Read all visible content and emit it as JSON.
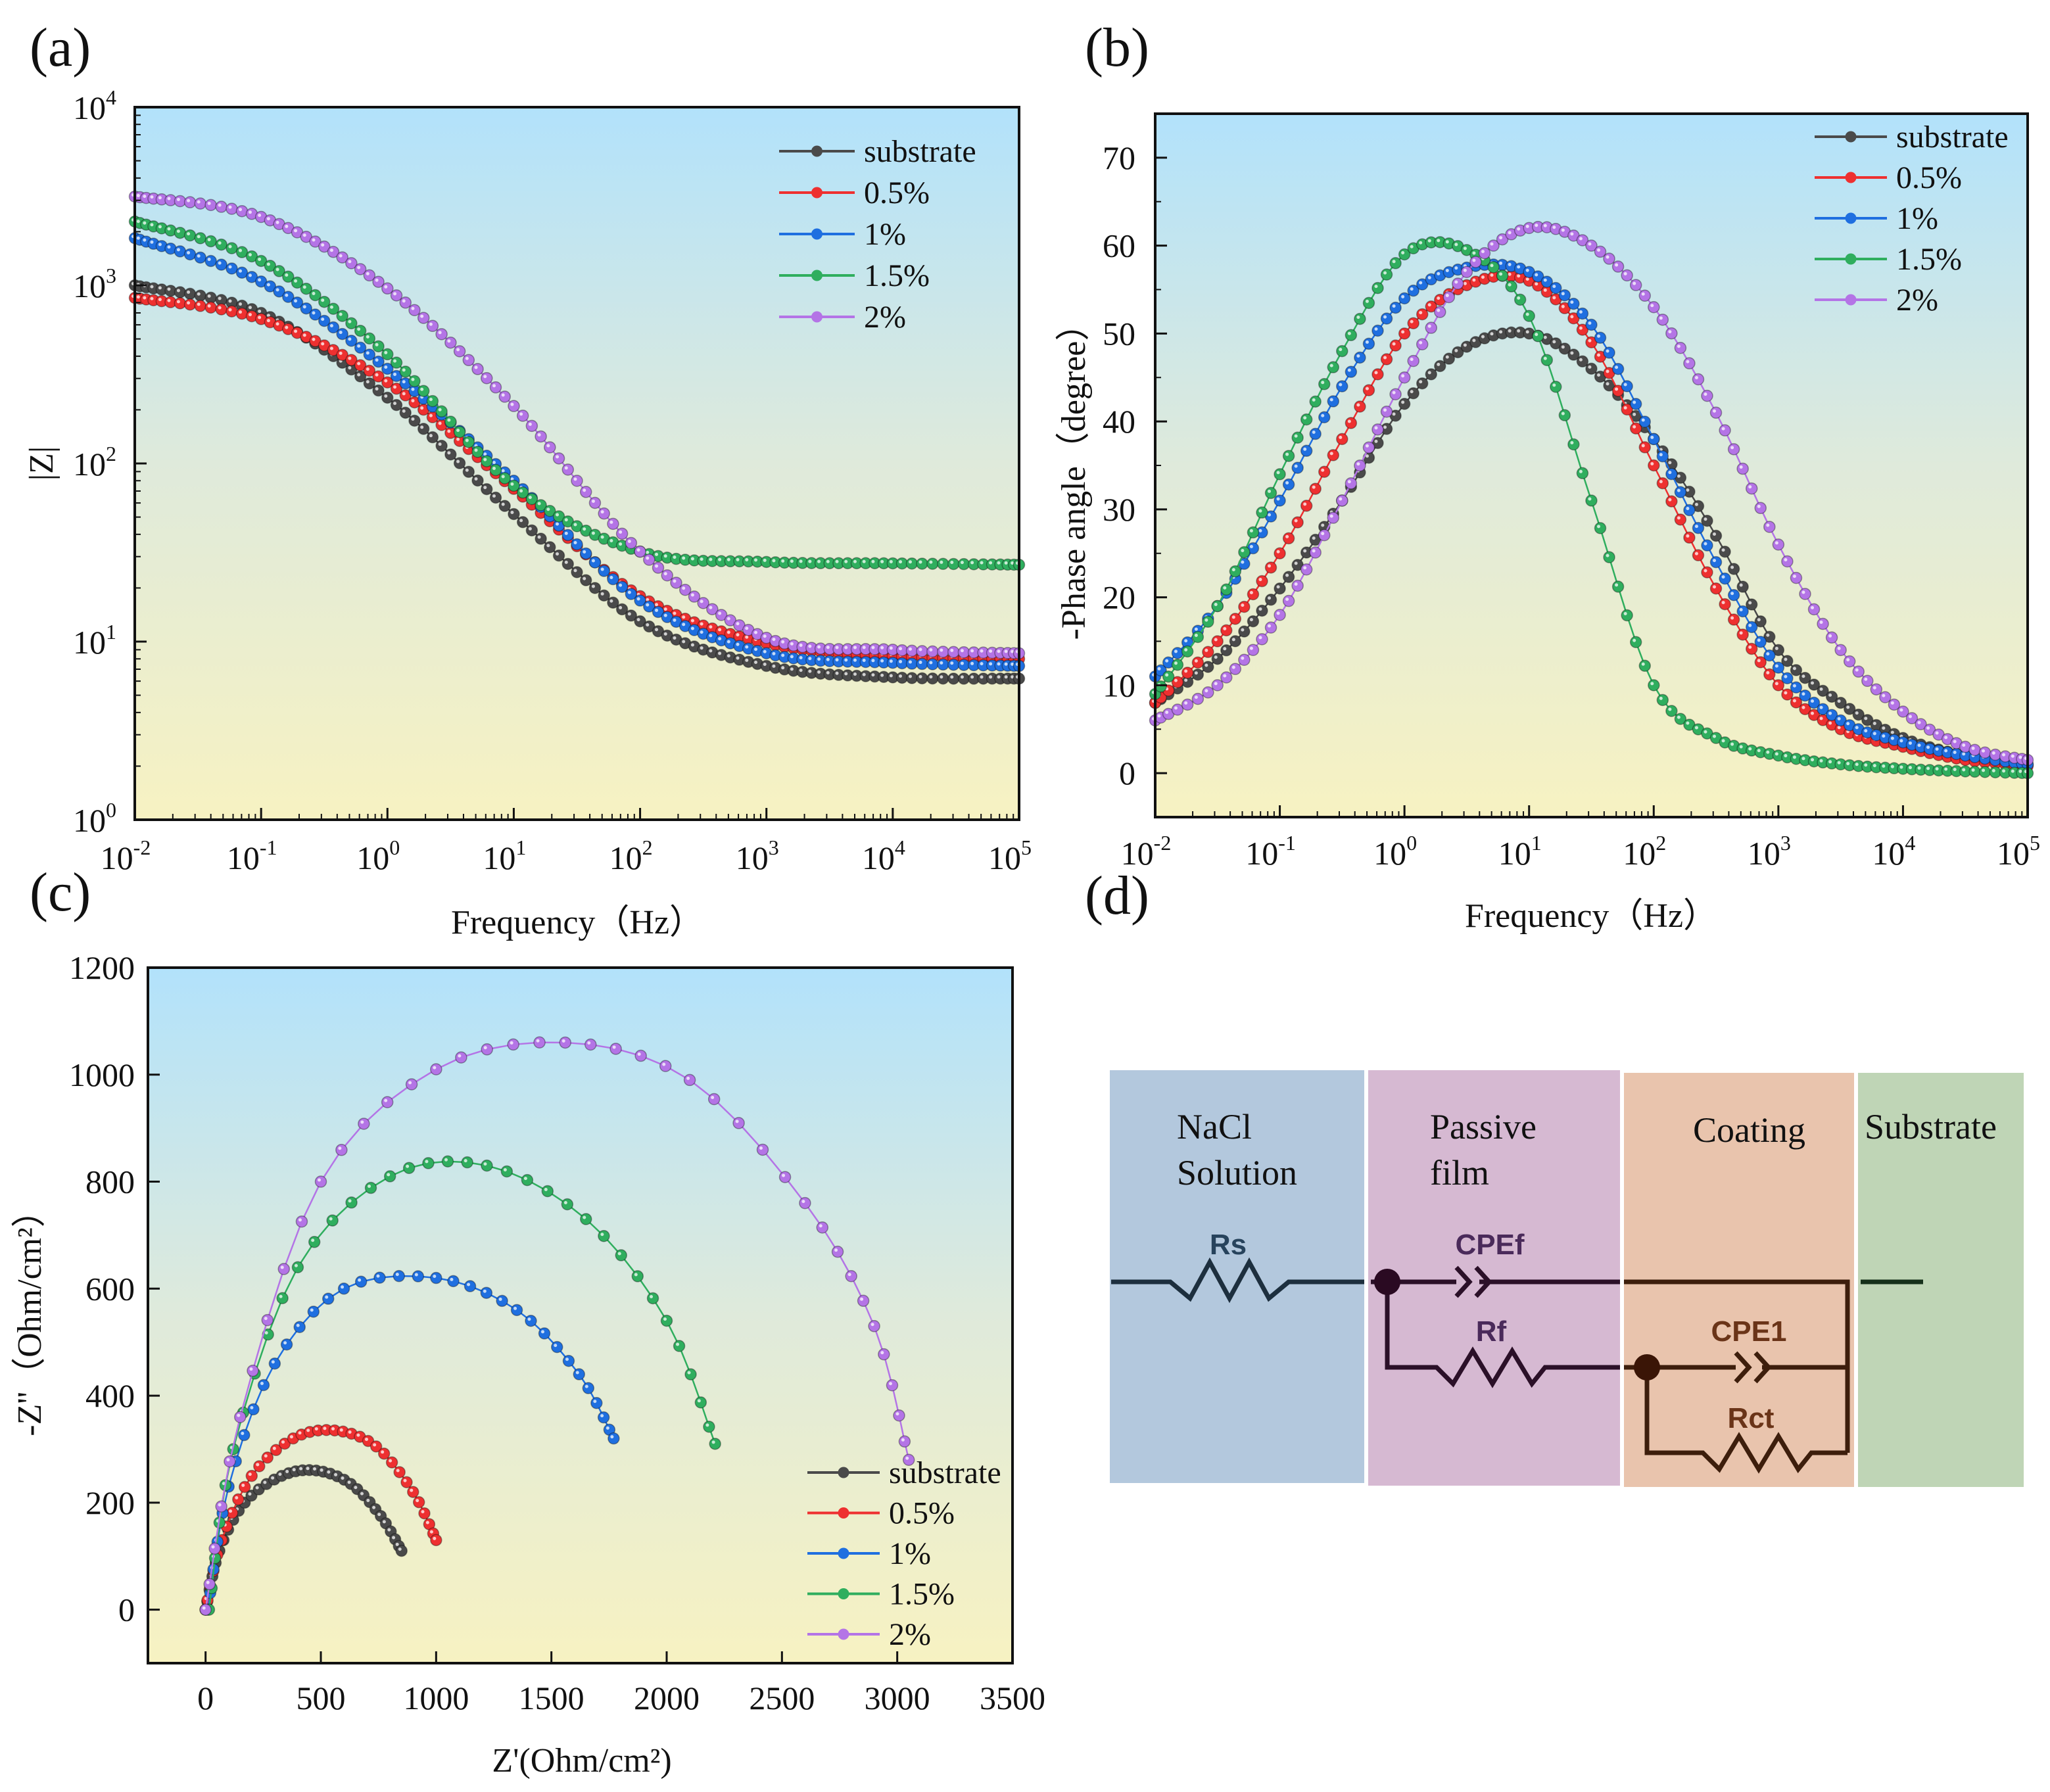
{
  "panel_labels": {
    "a": "(a)",
    "b": "(b)",
    "c": "(c)",
    "d": "(d)"
  },
  "series_colors": {
    "substrate": "#4a4a4a",
    "0.5%": "#ee3030",
    "1%": "#1f6fe0",
    "1.5%": "#2fae5e",
    "2%": "#b474e6"
  },
  "chart_data": [
    {
      "id": "a",
      "type": "line",
      "title": "",
      "xlabel": "Frequency（Hz）",
      "ylabel": "|Z|",
      "xscale": "log",
      "yscale": "log",
      "xlim": [
        0.01,
        100000
      ],
      "ylim": [
        1,
        10000
      ],
      "xticks": [
        {
          "base": "10",
          "exp": "-2"
        },
        {
          "base": "10",
          "exp": "-1"
        },
        {
          "base": "10",
          "exp": "0"
        },
        {
          "base": "10",
          "exp": "1"
        },
        {
          "base": "10",
          "exp": "2"
        },
        {
          "base": "10",
          "exp": "3"
        },
        {
          "base": "10",
          "exp": "4"
        },
        {
          "base": "10",
          "exp": "5"
        }
      ],
      "yticks": [
        {
          "base": "10",
          "exp": "0"
        },
        {
          "base": "10",
          "exp": "1"
        },
        {
          "base": "10",
          "exp": "2"
        },
        {
          "base": "10",
          "exp": "3"
        },
        {
          "base": "10",
          "exp": "4"
        }
      ],
      "legend_position": "top-right",
      "x": [
        0.01,
        0.1,
        1,
        10,
        100,
        1000,
        10000,
        100000
      ],
      "series": [
        {
          "name": "substrate",
          "values": [
            1000,
            700,
            234,
            52,
            13,
            7.3,
            6.3,
            6.2
          ]
        },
        {
          "name": "0.5%",
          "values": [
            850,
            646,
            285,
            72,
            18,
            9.8,
            8.3,
            8.0
          ]
        },
        {
          "name": "1%",
          "values": [
            1840,
            1050,
            340,
            80,
            17,
            8.6,
            7.6,
            7.3
          ]
        },
        {
          "name": "1.5%",
          "values": [
            2280,
            1370,
            410,
            75,
            32,
            28,
            27.5,
            27
          ]
        },
        {
          "name": "2%",
          "values": [
            3150,
            2420,
            960,
            210,
            32,
            10.5,
            9,
            8.6
          ]
        }
      ]
    },
    {
      "id": "b",
      "type": "line",
      "title": "",
      "xlabel": "Frequency（Hz）",
      "ylabel": "-Phase angle（degree）",
      "xscale": "log",
      "xlim": [
        0.01,
        100000
      ],
      "ylim": [
        -5,
        75
      ],
      "xticks": [
        {
          "base": "10",
          "exp": "-2"
        },
        {
          "base": "10",
          "exp": "-1"
        },
        {
          "base": "10",
          "exp": "0"
        },
        {
          "base": "10",
          "exp": "1"
        },
        {
          "base": "10",
          "exp": "2"
        },
        {
          "base": "10",
          "exp": "3"
        },
        {
          "base": "10",
          "exp": "4"
        },
        {
          "base": "10",
          "exp": "5"
        }
      ],
      "yticks": [
        "0",
        "10",
        "20",
        "30",
        "40",
        "50",
        "60",
        "70"
      ],
      "legend_position": "top-right",
      "x": [
        0.01,
        0.0316,
        0.1,
        0.316,
        1,
        3.16,
        10,
        31.6,
        100,
        316,
        1000,
        3162,
        10000,
        31623,
        100000
      ],
      "series": [
        {
          "name": "substrate",
          "values": [
            8,
            13,
            21,
            31,
            42,
            48.5,
            50,
            46,
            38,
            27,
            14,
            8,
            4,
            2,
            1
          ]
        },
        {
          "name": "0.5%",
          "values": [
            8,
            15,
            25,
            38,
            50,
            55.5,
            56,
            49,
            35,
            21,
            10,
            5,
            3,
            1.5,
            0.8
          ]
        },
        {
          "name": "1%",
          "values": [
            11,
            19,
            31,
            44,
            54,
            57.5,
            57,
            51,
            38,
            24,
            12,
            6,
            3.5,
            2,
            1
          ]
        },
        {
          "name": "1.5%",
          "values": [
            9,
            19,
            34,
            48,
            59,
            59.5,
            52,
            31,
            10,
            4,
            2,
            1,
            0.5,
            0.2,
            0
          ]
        },
        {
          "name": "2%",
          "values": [
            6,
            10,
            18,
            31,
            45,
            57,
            62,
            60,
            53,
            41,
            26,
            14,
            7,
            3,
            1.5
          ]
        }
      ]
    },
    {
      "id": "c",
      "type": "scatter",
      "title": "",
      "xlabel": "Z'(Ohm/cm²)",
      "ylabel": "-Z''（Ohm/cm²）",
      "xlim": [
        -250,
        3500
      ],
      "ylim": [
        -100,
        1200
      ],
      "xticks": [
        "0",
        "500",
        "1000",
        "1500",
        "2000",
        "2500",
        "3000",
        "3500"
      ],
      "yticks": [
        "0",
        "200",
        "400",
        "600",
        "800",
        "1000",
        "1200"
      ],
      "legend_position": "bottom-right",
      "series": [
        {
          "name": "substrate",
          "points": [
            [
              0,
              0
            ],
            [
              60,
              110
            ],
            [
              170,
              200
            ],
            [
              330,
              250
            ],
            [
              480,
              260
            ],
            [
              630,
              235
            ],
            [
              760,
              175
            ],
            [
              850,
              110
            ]
          ]
        },
        {
          "name": "0.5%",
          "points": [
            [
              0,
              0
            ],
            [
              70,
              130
            ],
            [
              200,
              250
            ],
            [
              380,
              320
            ],
            [
              560,
              335
            ],
            [
              740,
              305
            ],
            [
              900,
              220
            ],
            [
              1000,
              130
            ]
          ]
        },
        {
          "name": "1%",
          "points": [
            [
              10,
              0
            ],
            [
              100,
              230
            ],
            [
              300,
              460
            ],
            [
              600,
              600
            ],
            [
              1000,
              620
            ],
            [
              1350,
              560
            ],
            [
              1620,
              440
            ],
            [
              1770,
              320
            ]
          ]
        },
        {
          "name": "1.5%",
          "points": [
            [
              15,
              0
            ],
            [
              120,
              300
            ],
            [
              400,
              640
            ],
            [
              800,
              810
            ],
            [
              1220,
              830
            ],
            [
              1650,
              730
            ],
            [
              2000,
              540
            ],
            [
              2210,
              310
            ]
          ]
        },
        {
          "name": "2%",
          "points": [
            [
              0,
              0
            ],
            [
              150,
              360
            ],
            [
              500,
              800
            ],
            [
              1000,
              1010
            ],
            [
              1560,
              1060
            ],
            [
              2100,
              990
            ],
            [
              2600,
              760
            ],
            [
              2900,
              530
            ],
            [
              3050,
              280
            ]
          ]
        }
      ]
    }
  ],
  "circuit": {
    "layers": [
      {
        "line1": "NaCl",
        "line2": "Solution",
        "color": "#b3c8dd"
      },
      {
        "line1": "Passive",
        "line2": "film",
        "color": "#d6b9d2"
      },
      {
        "line1": "Coating",
        "line2": "",
        "color": "#e9c4ad"
      },
      {
        "line1": "Substrate",
        "line2": "",
        "color": "#bfd5b6"
      }
    ],
    "elements": {
      "rs": "Rs",
      "cpef": "CPEf",
      "rf": "Rf",
      "cpe1": "CPE1",
      "rct": "Rct"
    }
  }
}
